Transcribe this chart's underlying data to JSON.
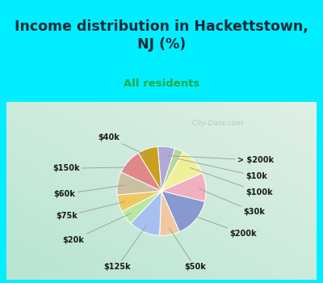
{
  "title": "Income distribution in Hackettstown,\nNJ (%)",
  "subtitle": "All residents",
  "labels": [
    "> $200k",
    "$10k",
    "$100k",
    "$30k",
    "$200k",
    "$50k",
    "$125k",
    "$20k",
    "$75k",
    "$60k",
    "$150k",
    "$40k"
  ],
  "sizes": [
    6,
    3,
    10,
    10,
    14,
    7,
    11,
    5,
    6,
    8,
    9,
    7
  ],
  "colors": [
    "#b0a8d8",
    "#b8d898",
    "#f0f098",
    "#f0b0c0",
    "#8898d0",
    "#f0c8a0",
    "#a8c0f0",
    "#b8e8a0",
    "#f0c860",
    "#c8c0a0",
    "#e08888",
    "#c8a020"
  ],
  "background_color": "#00eeff",
  "chart_bg_color": "#d8ede0",
  "title_color": "#1a2a3a",
  "subtitle_color": "#22aa44",
  "label_color": "#1a1a1a",
  "watermark": "City-Data.com",
  "startangle": 95,
  "label_fontsize": 7.0
}
